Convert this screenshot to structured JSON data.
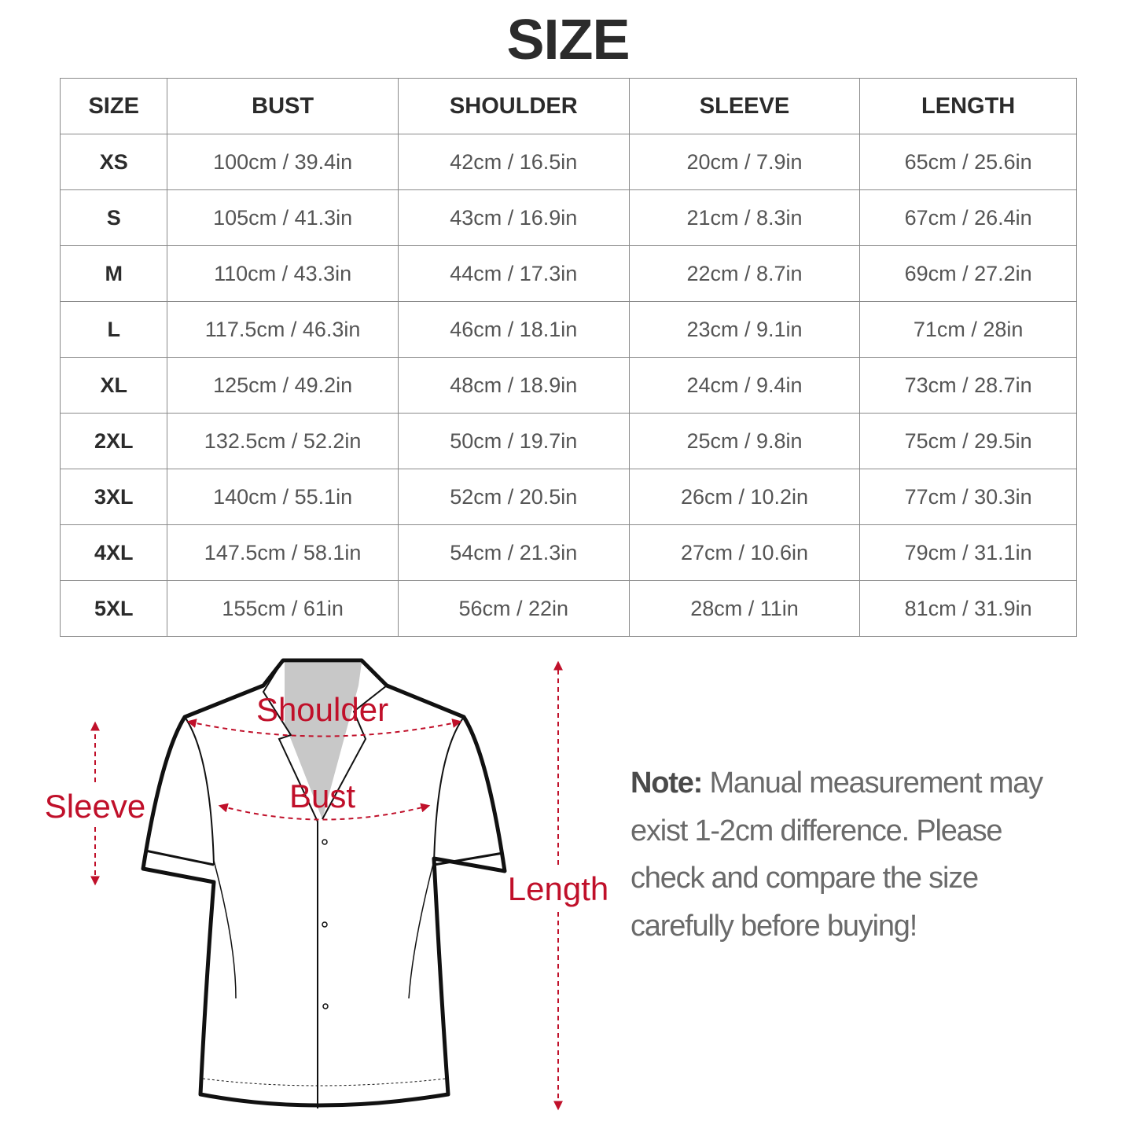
{
  "title": "SIZE",
  "table": {
    "headers": [
      "SIZE",
      "BUST",
      "SHOULDER",
      "SLEEVE",
      "LENGTH"
    ],
    "rows": [
      [
        "XS",
        "100cm / 39.4in",
        "42cm / 16.5in",
        "20cm / 7.9in",
        "65cm / 25.6in"
      ],
      [
        "S",
        "105cm / 41.3in",
        "43cm / 16.9in",
        "21cm / 8.3in",
        "67cm / 26.4in"
      ],
      [
        "M",
        "110cm / 43.3in",
        "44cm / 17.3in",
        "22cm / 8.7in",
        "69cm / 27.2in"
      ],
      [
        "L",
        "117.5cm / 46.3in",
        "46cm / 18.1in",
        "23cm / 9.1in",
        "71cm / 28in"
      ],
      [
        "XL",
        "125cm / 49.2in",
        "48cm / 18.9in",
        "24cm / 9.4in",
        "73cm / 28.7in"
      ],
      [
        "2XL",
        "132.5cm / 52.2in",
        "50cm / 19.7in",
        "25cm / 9.8in",
        "75cm / 29.5in"
      ],
      [
        "3XL",
        "140cm / 55.1in",
        "52cm / 20.5in",
        "26cm / 10.2in",
        "77cm / 30.3in"
      ],
      [
        "4XL",
        "147.5cm / 58.1in",
        "54cm / 21.3in",
        "27cm / 10.6in",
        "79cm / 31.1in"
      ],
      [
        "5XL",
        "155cm / 61in",
        "56cm / 22in",
        "28cm / 11in",
        "81cm / 31.9in"
      ]
    ]
  },
  "diagram": {
    "labels": {
      "shoulder": "Shoulder",
      "bust": "Bust",
      "sleeve": "Sleeve",
      "length": "Length"
    },
    "accent_color": "#c0102a"
  },
  "note": {
    "label": "Note:",
    "lines": [
      "Manual measurement may",
      "exist 1-2cm difference. Please",
      "check and compare the size",
      "carefully before buying!"
    ]
  }
}
